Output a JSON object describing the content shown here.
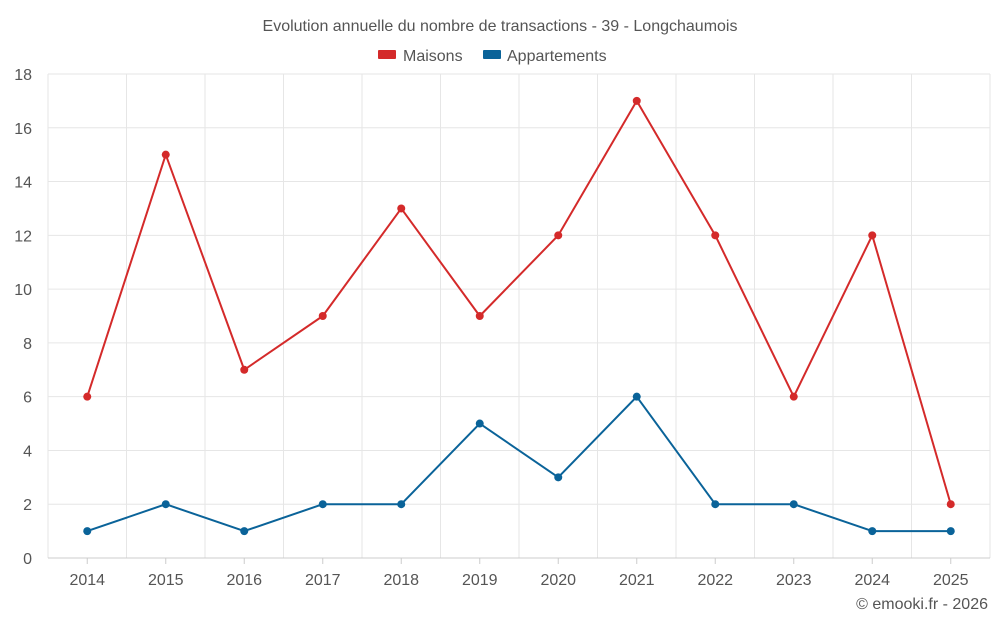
{
  "chart_data": {
    "type": "line",
    "title": "Evolution annuelle du nombre de transactions - 39 - Longchaumois",
    "categories": [
      "2014",
      "2015",
      "2016",
      "2017",
      "2018",
      "2019",
      "2020",
      "2021",
      "2022",
      "2023",
      "2024",
      "2025"
    ],
    "series": [
      {
        "name": "Maisons",
        "color": "#d42a2a",
        "values": [
          6,
          15,
          7,
          9,
          13,
          9,
          12,
          17,
          12,
          6,
          12,
          2
        ]
      },
      {
        "name": "Appartements",
        "color": "#0a6399",
        "values": [
          1,
          2,
          1,
          2,
          2,
          5,
          3,
          6,
          2,
          2,
          1,
          1
        ]
      }
    ],
    "ylim": [
      0,
      18
    ],
    "yticks": [
      0,
      2,
      4,
      6,
      8,
      10,
      12,
      14,
      16,
      18
    ],
    "xlabel": "",
    "ylabel": "",
    "grid": true,
    "legend_position": "top-center"
  },
  "credit": "© emooki.fr - 2026"
}
